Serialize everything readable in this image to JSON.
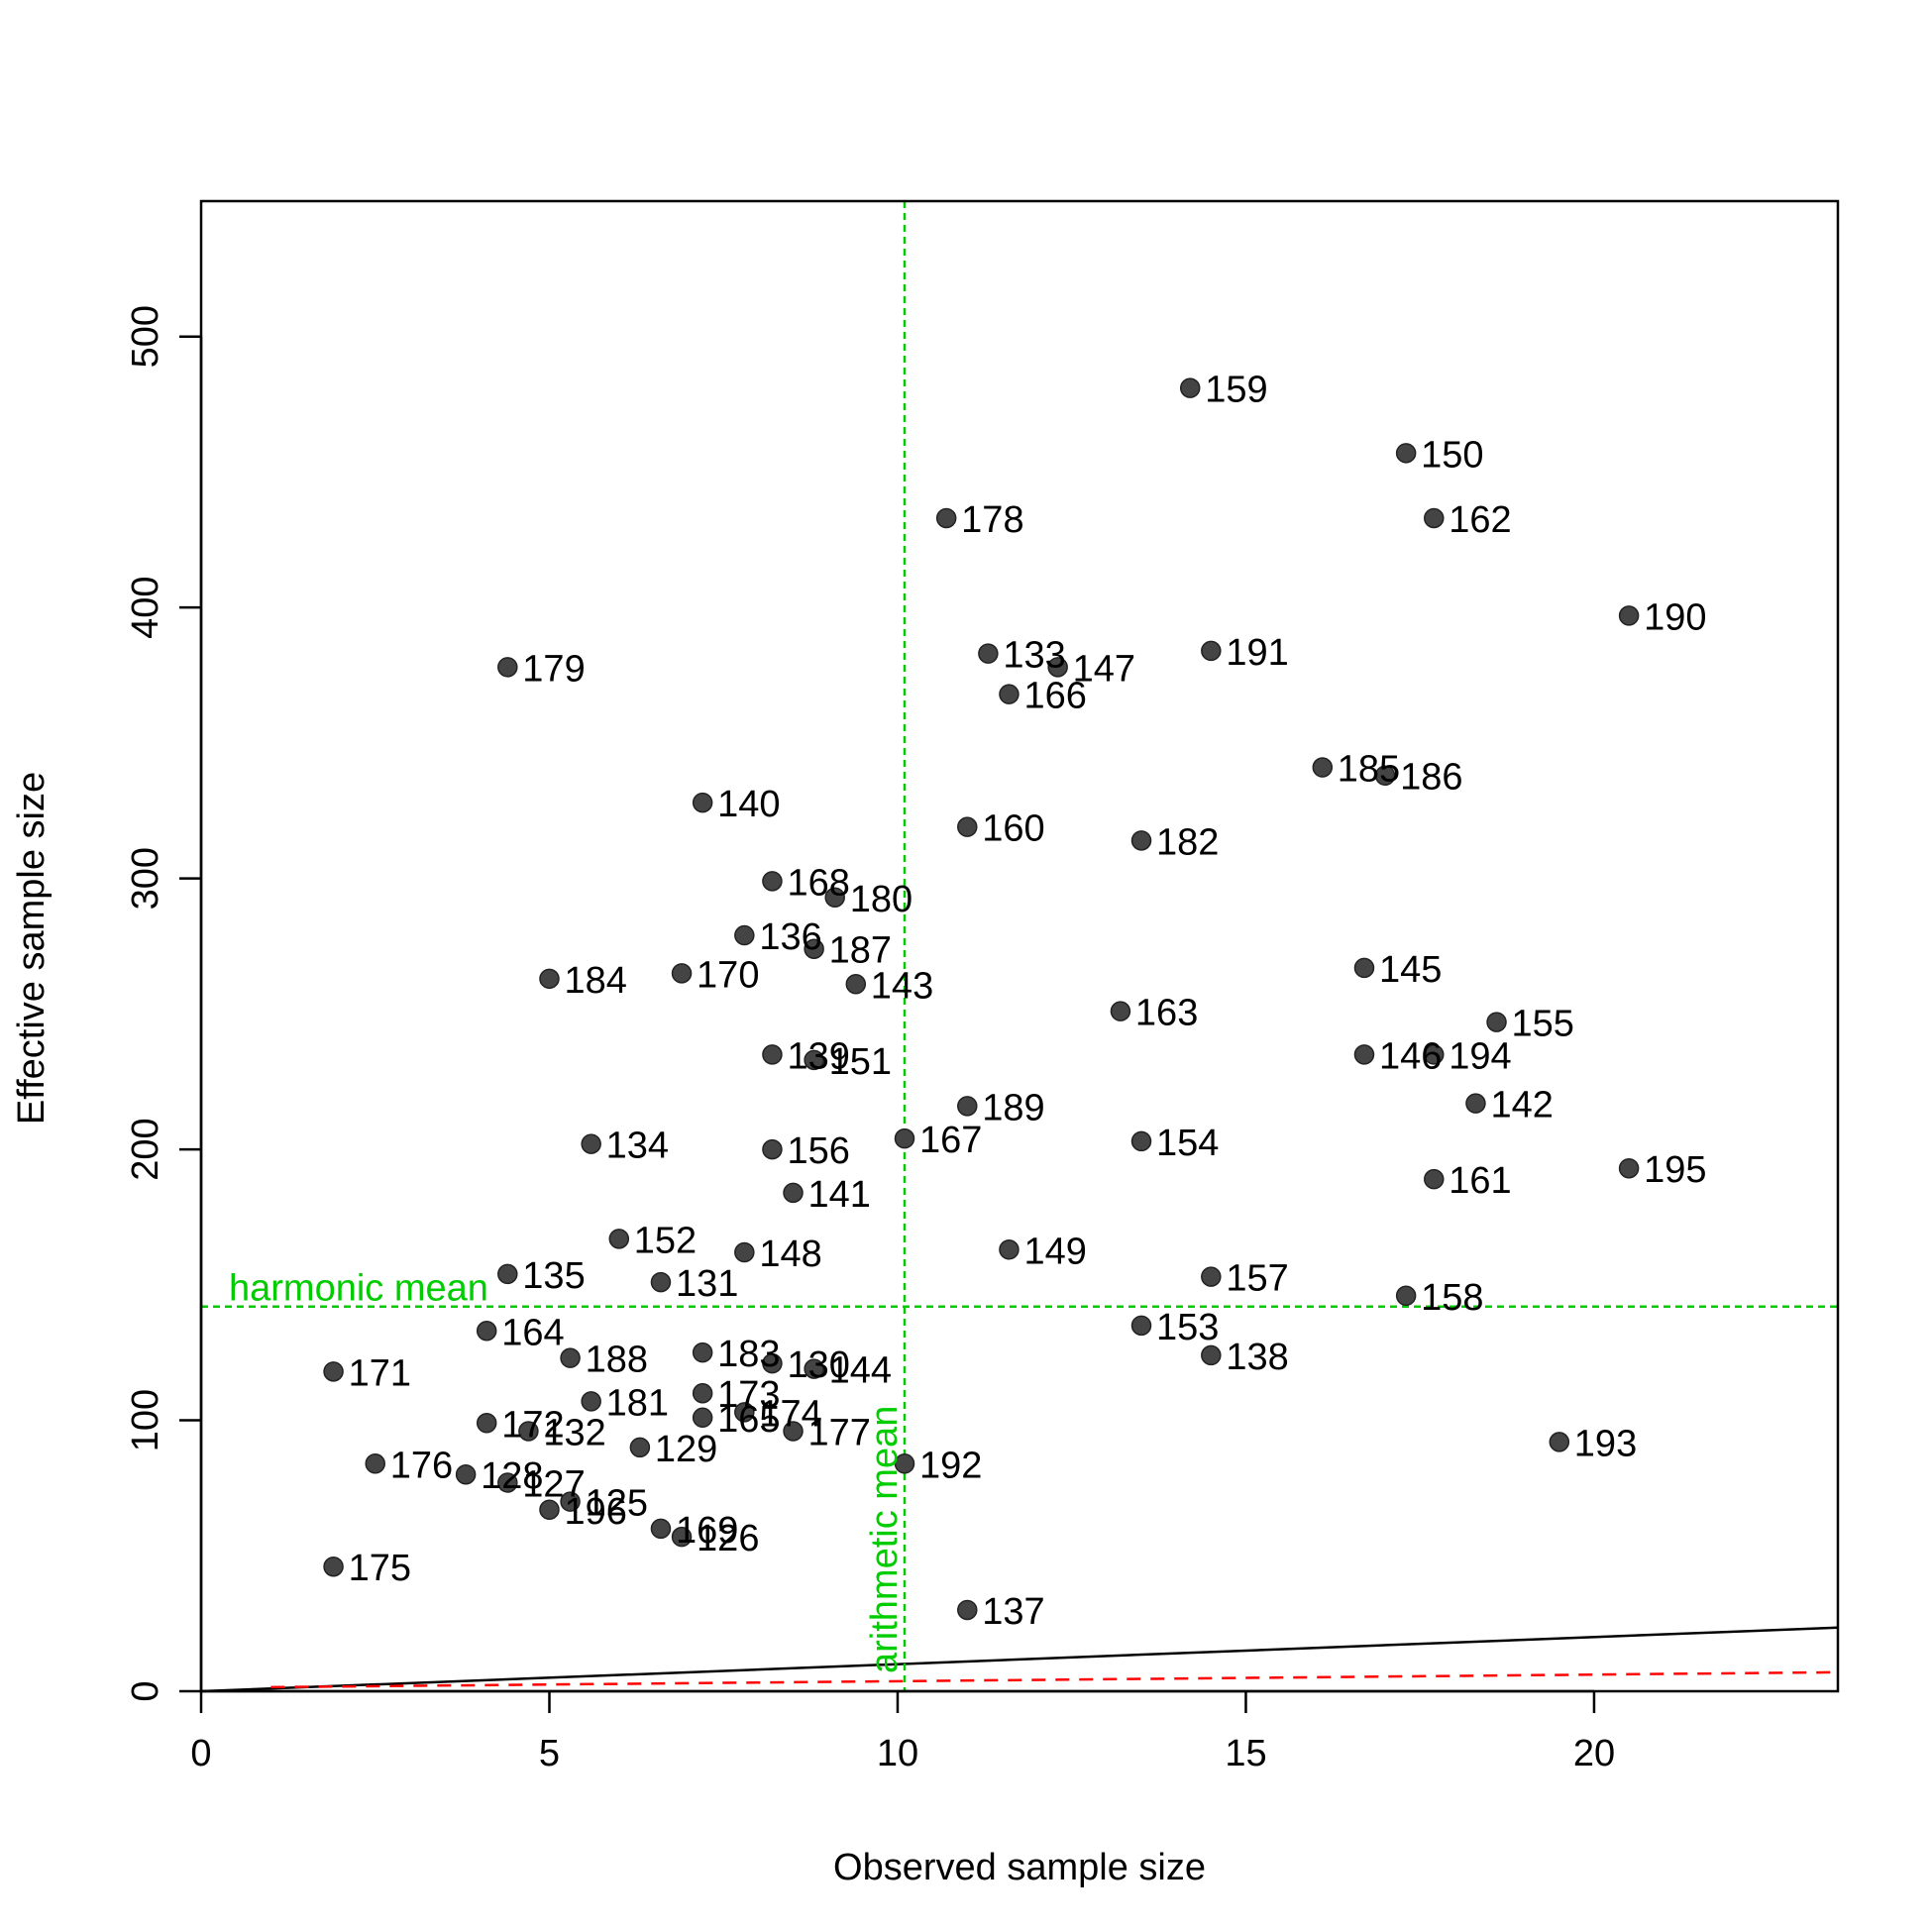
{
  "chart_data": {
    "type": "scatter",
    "xlabel": "Observed sample size",
    "ylabel": "Effective sample size",
    "xlim": [
      0,
      23.5
    ],
    "ylim": [
      0,
      550
    ],
    "xticks": [
      0,
      5,
      10,
      15,
      20
    ],
    "yticks": [
      0,
      100,
      200,
      300,
      400,
      500
    ],
    "grid": false,
    "colors": {
      "points": "#444444",
      "reference": "#00cc00",
      "identity_line": "#000000",
      "dashed_line": "#ff0000"
    },
    "reference_lines": {
      "harmonic_mean": {
        "y": 142,
        "label": "harmonic mean"
      },
      "arithmetic_mean": {
        "x": 10.1,
        "label": "arithmetic mean"
      }
    },
    "lines": {
      "identity": {
        "from": [
          0,
          0
        ],
        "to": [
          23.5,
          23.5
        ]
      },
      "dashed": {
        "from": [
          1,
          1.5
        ],
        "to": [
          23.5,
          7
        ]
      }
    },
    "points": [
      {
        "label": "159",
        "x": 14.2,
        "y": 481
      },
      {
        "label": "150",
        "x": 17.3,
        "y": 457
      },
      {
        "label": "162",
        "x": 17.7,
        "y": 433
      },
      {
        "label": "178",
        "x": 10.7,
        "y": 433
      },
      {
        "label": "190",
        "x": 20.5,
        "y": 397
      },
      {
        "label": "191",
        "x": 14.5,
        "y": 384
      },
      {
        "label": "133",
        "x": 11.3,
        "y": 383
      },
      {
        "label": "147",
        "x": 12.3,
        "y": 378
      },
      {
        "label": "179",
        "x": 4.4,
        "y": 378
      },
      {
        "label": "166",
        "x": 11.6,
        "y": 368
      },
      {
        "label": "185",
        "x": 16.1,
        "y": 341
      },
      {
        "label": "186",
        "x": 17.0,
        "y": 338
      },
      {
        "label": "140",
        "x": 7.2,
        "y": 328
      },
      {
        "label": "160",
        "x": 11.0,
        "y": 319
      },
      {
        "label": "182",
        "x": 13.5,
        "y": 314
      },
      {
        "label": "168",
        "x": 8.2,
        "y": 299
      },
      {
        "label": "180",
        "x": 9.1,
        "y": 293
      },
      {
        "label": "136",
        "x": 7.8,
        "y": 279
      },
      {
        "label": "187",
        "x": 8.8,
        "y": 274
      },
      {
        "label": "145",
        "x": 16.7,
        "y": 267
      },
      {
        "label": "170",
        "x": 6.9,
        "y": 265
      },
      {
        "label": "184",
        "x": 5.0,
        "y": 263
      },
      {
        "label": "143",
        "x": 9.4,
        "y": 261
      },
      {
        "label": "163",
        "x": 13.2,
        "y": 251
      },
      {
        "label": "155",
        "x": 18.6,
        "y": 247
      },
      {
        "label": "139",
        "x": 8.2,
        "y": 235
      },
      {
        "label": "146",
        "x": 16.7,
        "y": 235
      },
      {
        "label": "194",
        "x": 17.7,
        "y": 235
      },
      {
        "label": "151",
        "x": 8.8,
        "y": 233
      },
      {
        "label": "142",
        "x": 18.3,
        "y": 217
      },
      {
        "label": "189",
        "x": 11.0,
        "y": 216
      },
      {
        "label": "167",
        "x": 10.1,
        "y": 204
      },
      {
        "label": "154",
        "x": 13.5,
        "y": 203
      },
      {
        "label": "134",
        "x": 5.6,
        "y": 202
      },
      {
        "label": "156",
        "x": 8.2,
        "y": 200
      },
      {
        "label": "195",
        "x": 20.5,
        "y": 193
      },
      {
        "label": "161",
        "x": 17.7,
        "y": 189
      },
      {
        "label": "141",
        "x": 8.5,
        "y": 184
      },
      {
        "label": "152",
        "x": 6.0,
        "y": 167
      },
      {
        "label": "149",
        "x": 11.6,
        "y": 163
      },
      {
        "label": "148",
        "x": 7.8,
        "y": 162
      },
      {
        "label": "135",
        "x": 4.4,
        "y": 154
      },
      {
        "label": "157",
        "x": 14.5,
        "y": 153
      },
      {
        "label": "131",
        "x": 6.6,
        "y": 151
      },
      {
        "label": "158",
        "x": 17.3,
        "y": 146
      },
      {
        "label": "153",
        "x": 13.5,
        "y": 135
      },
      {
        "label": "164",
        "x": 4.1,
        "y": 133
      },
      {
        "label": "183",
        "x": 7.2,
        "y": 125
      },
      {
        "label": "138",
        "x": 14.5,
        "y": 124
      },
      {
        "label": "188",
        "x": 5.3,
        "y": 123
      },
      {
        "label": "130",
        "x": 8.2,
        "y": 121
      },
      {
        "label": "144",
        "x": 8.8,
        "y": 119
      },
      {
        "label": "171",
        "x": 1.9,
        "y": 118
      },
      {
        "label": "173",
        "x": 7.2,
        "y": 110
      },
      {
        "label": "181",
        "x": 5.6,
        "y": 107
      },
      {
        "label": "174",
        "x": 7.8,
        "y": 103
      },
      {
        "label": "165",
        "x": 7.2,
        "y": 101
      },
      {
        "label": "172",
        "x": 4.1,
        "y": 99
      },
      {
        "label": "177",
        "x": 8.5,
        "y": 96
      },
      {
        "label": "132",
        "x": 4.7,
        "y": 96
      },
      {
        "label": "193",
        "x": 19.5,
        "y": 92
      },
      {
        "label": "129",
        "x": 6.3,
        "y": 90
      },
      {
        "label": "192",
        "x": 10.1,
        "y": 84
      },
      {
        "label": "176",
        "x": 2.5,
        "y": 84
      },
      {
        "label": "128",
        "x": 3.8,
        "y": 80
      },
      {
        "label": "127",
        "x": 4.4,
        "y": 77
      },
      {
        "label": "125",
        "x": 5.3,
        "y": 70
      },
      {
        "label": "196",
        "x": 5.0,
        "y": 67
      },
      {
        "label": "169",
        "x": 6.6,
        "y": 60
      },
      {
        "label": "126",
        "x": 6.9,
        "y": 57
      },
      {
        "label": "175",
        "x": 1.9,
        "y": 46
      },
      {
        "label": "137",
        "x": 11.0,
        "y": 30
      }
    ]
  }
}
